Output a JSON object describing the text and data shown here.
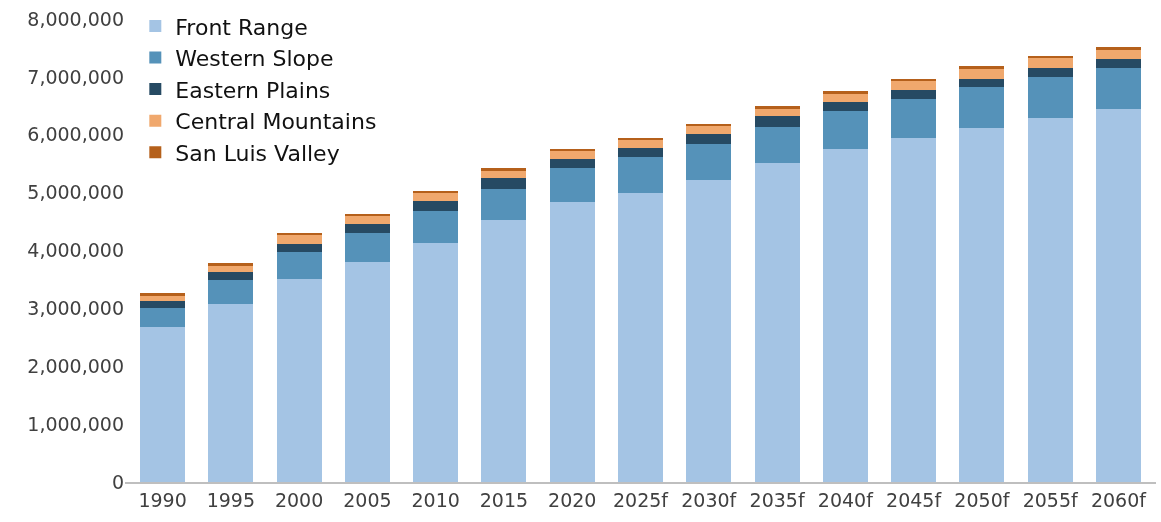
{
  "chart_data": {
    "type": "bar",
    "stacked": true,
    "categories": [
      "1990",
      "1995",
      "2000",
      "2005",
      "2010",
      "2015",
      "2020",
      "2025f",
      "2030f",
      "2035f",
      "2040f",
      "2045f",
      "2050f",
      "2055f",
      "2060f"
    ],
    "series": [
      {
        "name": "Front Range",
        "color": "#a4c4e4",
        "values": [
          2680000,
          3070000,
          3510000,
          3800000,
          4130000,
          4520000,
          4830000,
          5000000,
          5220000,
          5510000,
          5750000,
          5940000,
          6120000,
          6290000,
          6450000
        ]
      },
      {
        "name": "Western Slope",
        "color": "#5592b9",
        "values": [
          330000,
          420000,
          460000,
          500000,
          550000,
          550000,
          590000,
          610000,
          620000,
          630000,
          660000,
          680000,
          700000,
          710000,
          700000
        ]
      },
      {
        "name": "Eastern Plains",
        "color": "#264a63",
        "values": [
          120000,
          130000,
          150000,
          160000,
          170000,
          180000,
          160000,
          160000,
          170000,
          180000,
          150000,
          160000,
          150000,
          150000,
          160000
        ]
      },
      {
        "name": "Central Mountains",
        "color": "#f0a86d",
        "values": [
          90000,
          120000,
          140000,
          140000,
          150000,
          140000,
          140000,
          140000,
          150000,
          140000,
          160000,
          160000,
          170000,
          170000,
          160000
        ]
      },
      {
        "name": "San Luis Valley",
        "color": "#b5601b",
        "values": [
          50000,
          40000,
          40000,
          30000,
          30000,
          30000,
          30000,
          30000,
          30000,
          30000,
          30000,
          30000,
          40000,
          40000,
          40000
        ]
      }
    ],
    "ylim": [
      0,
      8000000
    ],
    "yticks": [
      {
        "value": 0,
        "label": "0"
      },
      {
        "value": 1000000,
        "label": "1,000,000"
      },
      {
        "value": 2000000,
        "label": "2,000,000"
      },
      {
        "value": 3000000,
        "label": "3,000,000"
      },
      {
        "value": 4000000,
        "label": "4,000,000"
      },
      {
        "value": 5000000,
        "label": "5,000,000"
      },
      {
        "value": 6000000,
        "label": "6,000,000"
      },
      {
        "value": 7000000,
        "label": "7,000,000"
      },
      {
        "value": 8000000,
        "label": "8,000,000"
      }
    ],
    "grid": false,
    "legend": "top left"
  }
}
